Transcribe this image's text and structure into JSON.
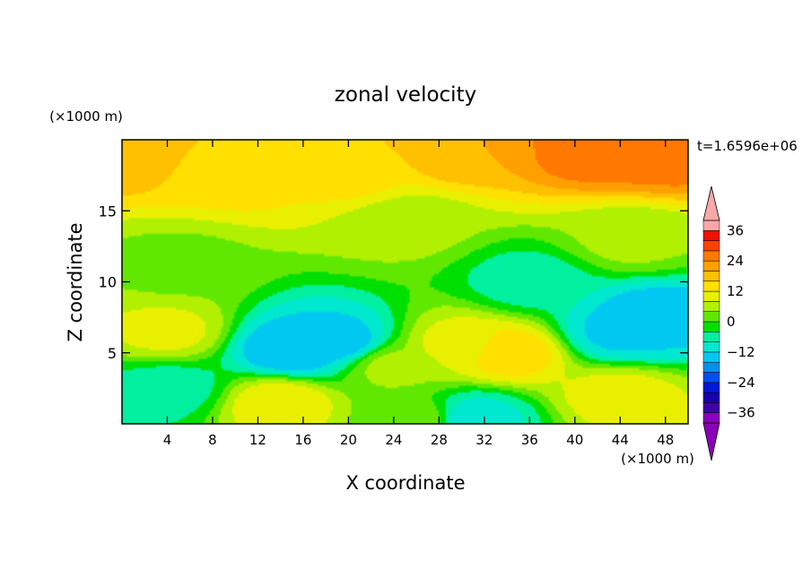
{
  "chart_data": {
    "type": "heatmap",
    "title": "zonal velocity",
    "xlabel": "X coordinate",
    "ylabel": "Z coordinate",
    "x_unit_label": "(×1000 m)",
    "y_unit_label": "(×1000 m)",
    "time_label": "t=1.6596e+06",
    "xlim": [
      0,
      50
    ],
    "ylim": [
      0,
      20
    ],
    "x_ticks": [
      4,
      8,
      12,
      16,
      20,
      24,
      28,
      32,
      36,
      40,
      44,
      48
    ],
    "y_ticks": [
      5,
      10,
      15
    ],
    "colorbar": {
      "levels": [
        -36,
        -32,
        -28,
        -24,
        -20,
        -16,
        -12,
        -8,
        -4,
        0,
        4,
        8,
        12,
        16,
        20,
        24,
        28,
        32,
        36
      ],
      "tick_labels": [
        -36,
        -24,
        -12,
        0,
        12,
        24,
        36
      ],
      "colors": [
        "#8a00b8",
        "#4000a8",
        "#1800b0",
        "#0018d8",
        "#0050f0",
        "#0090f0",
        "#00c8f0",
        "#00e8d0",
        "#00f0a0",
        "#00e000",
        "#60e800",
        "#b0f000",
        "#e8f000",
        "#ffe000",
        "#ffc000",
        "#ffa000",
        "#ff7800",
        "#ff4000",
        "#f01000",
        "#f8a8a8"
      ],
      "under_color": "#8a00b8",
      "over_color": "#f8a8a8"
    },
    "field_features": [
      {
        "x": 0,
        "z": 19.5,
        "value": 20
      },
      {
        "x": 10,
        "z": 18,
        "value": 14
      },
      {
        "x": 20,
        "z": 17.5,
        "value": 13
      },
      {
        "x": 30,
        "z": 19.5,
        "value": 20
      },
      {
        "x": 42,
        "z": 19.5,
        "value": 27
      },
      {
        "x": 48,
        "z": 19.0,
        "value": 26
      },
      {
        "x": 25,
        "z": 14,
        "value": 5
      },
      {
        "x": 45,
        "z": 13,
        "value": 5
      },
      {
        "x": 5,
        "z": 11,
        "value": 3
      },
      {
        "x": 36,
        "z": 10,
        "value": -6
      },
      {
        "x": 4,
        "z": 6.5,
        "value": 9
      },
      {
        "x": 15,
        "z": 5.2,
        "value": -16
      },
      {
        "x": 19,
        "z": 5.8,
        "value": -14
      },
      {
        "x": 30,
        "z": 5.5,
        "value": 10
      },
      {
        "x": 34,
        "z": 5,
        "value": 15
      },
      {
        "x": 44,
        "z": 6.5,
        "value": -13
      },
      {
        "x": 47,
        "z": 7.5,
        "value": -15
      },
      {
        "x": 24,
        "z": 4,
        "value": 5
      },
      {
        "x": 4,
        "z": 2.5,
        "value": -6
      },
      {
        "x": 14,
        "z": 1.5,
        "value": 11
      },
      {
        "x": 31,
        "z": 0.5,
        "value": -10
      },
      {
        "x": 44,
        "z": 2,
        "value": 10
      },
      {
        "x": 26,
        "z": 0.5,
        "value": 2
      }
    ]
  }
}
